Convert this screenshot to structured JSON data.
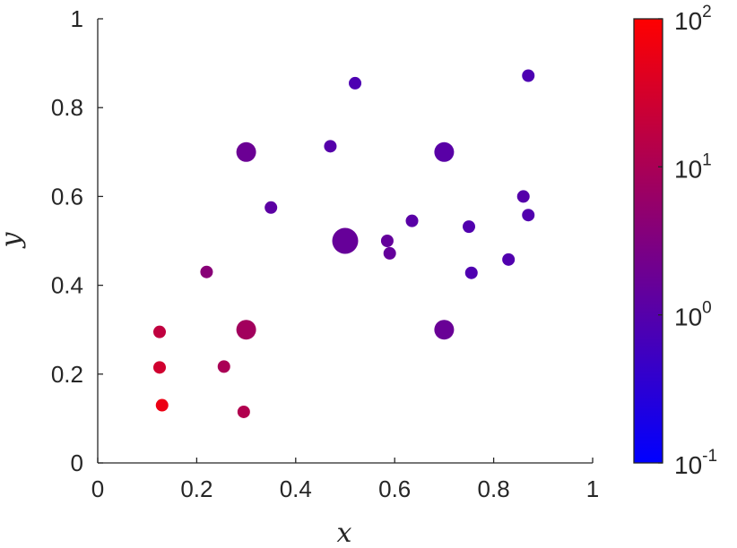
{
  "chart_data": {
    "type": "scatter",
    "xlabel": "x",
    "ylabel": "y",
    "xlim": [
      0,
      1
    ],
    "ylim": [
      0,
      1
    ],
    "x_ticks": [
      "0",
      "0.2",
      "0.4",
      "0.6",
      "0.8",
      "1"
    ],
    "y_ticks": [
      "0",
      "0.2",
      "0.4",
      "0.6",
      "0.8",
      "1"
    ],
    "grid": false,
    "colorbar": {
      "scale": "log",
      "range": [
        0.1,
        100
      ],
      "colors": [
        "#0000ff",
        "#ff0000"
      ],
      "tick_labels": [
        {
          "base": "10",
          "exp": "-1"
        },
        {
          "base": "10",
          "exp": "0"
        },
        {
          "base": "10",
          "exp": "1"
        },
        {
          "base": "10",
          "exp": "2"
        }
      ]
    },
    "points": [
      {
        "x": 0.13,
        "y": 0.13,
        "value": 60,
        "size": "small"
      },
      {
        "x": 0.125,
        "y": 0.215,
        "value": 28,
        "size": "small"
      },
      {
        "x": 0.125,
        "y": 0.295,
        "value": 18,
        "size": "small"
      },
      {
        "x": 0.295,
        "y": 0.115,
        "value": 12,
        "size": "small"
      },
      {
        "x": 0.255,
        "y": 0.217,
        "value": 10,
        "size": "small"
      },
      {
        "x": 0.22,
        "y": 0.43,
        "value": 4,
        "size": "small"
      },
      {
        "x": 0.3,
        "y": 0.3,
        "value": 8,
        "size": "medium"
      },
      {
        "x": 0.3,
        "y": 0.7,
        "value": 1.8,
        "size": "medium"
      },
      {
        "x": 0.35,
        "y": 0.575,
        "value": 1.2,
        "size": "small"
      },
      {
        "x": 0.47,
        "y": 0.713,
        "value": 1.0,
        "size": "small"
      },
      {
        "x": 0.52,
        "y": 0.855,
        "value": 0.8,
        "size": "small"
      },
      {
        "x": 0.5,
        "y": 0.5,
        "value": 1.6,
        "size": "large"
      },
      {
        "x": 0.585,
        "y": 0.5,
        "value": 1.5,
        "size": "small"
      },
      {
        "x": 0.59,
        "y": 0.472,
        "value": 1.5,
        "size": "small"
      },
      {
        "x": 0.635,
        "y": 0.545,
        "value": 1.1,
        "size": "small"
      },
      {
        "x": 0.7,
        "y": 0.7,
        "value": 1.1,
        "size": "medium"
      },
      {
        "x": 0.7,
        "y": 0.3,
        "value": 1.7,
        "size": "medium"
      },
      {
        "x": 0.75,
        "y": 0.532,
        "value": 0.9,
        "size": "small"
      },
      {
        "x": 0.755,
        "y": 0.428,
        "value": 0.85,
        "size": "small"
      },
      {
        "x": 0.83,
        "y": 0.458,
        "value": 0.9,
        "size": "small"
      },
      {
        "x": 0.86,
        "y": 0.6,
        "value": 1.0,
        "size": "small"
      },
      {
        "x": 0.87,
        "y": 0.558,
        "value": 0.9,
        "size": "small"
      },
      {
        "x": 0.87,
        "y": 0.872,
        "value": 0.8,
        "size": "small"
      }
    ]
  }
}
